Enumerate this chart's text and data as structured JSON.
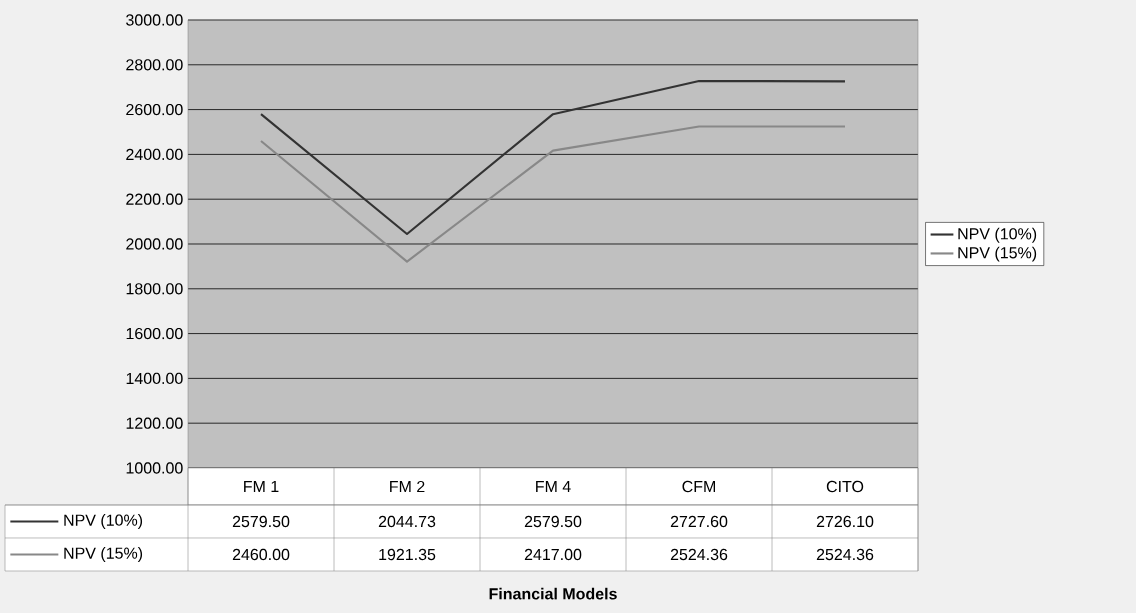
{
  "chart_data": {
    "type": "line",
    "annotations": [
      "Financial Models"
    ],
    "categories": [
      "FM 1",
      "FM 2",
      "FM 4",
      "CFM",
      "CITO"
    ],
    "series": [
      {
        "name": "NPV (10%)",
        "color": "#333333",
        "values": [
          2579.5,
          2044.73,
          2579.5,
          2727.6,
          2726.1
        ],
        "value_labels": [
          "2579.50",
          "2044.73",
          "2579.50",
          "2727.60",
          "2726.10"
        ]
      },
      {
        "name": "NPV (15%)",
        "color": "#888888",
        "values": [
          2460.0,
          1921.35,
          2417.0,
          2524.36,
          2524.36
        ],
        "value_labels": [
          "2460.00",
          "1921.35",
          "2417.00",
          "2524.36",
          "2524.36"
        ]
      }
    ],
    "ylim": [
      1000,
      3000
    ],
    "yticks": [
      {
        "value": 1000,
        "label": "1000.00"
      },
      {
        "value": 1200,
        "label": "1200.00"
      },
      {
        "value": 1400,
        "label": "1400.00"
      },
      {
        "value": 1600,
        "label": "1600.00"
      },
      {
        "value": 1800,
        "label": "1800.00"
      },
      {
        "value": 2000,
        "label": "2000.00"
      },
      {
        "value": 2200,
        "label": "2200.00"
      },
      {
        "value": 2400,
        "label": "2400.00"
      },
      {
        "value": 2600,
        "label": "2600.00"
      },
      {
        "value": 2800,
        "label": "2800.00"
      },
      {
        "value": 3000,
        "label": "3000.00"
      }
    ],
    "grid": "y",
    "legend": "right",
    "marker": "none",
    "line_style": "solid"
  }
}
